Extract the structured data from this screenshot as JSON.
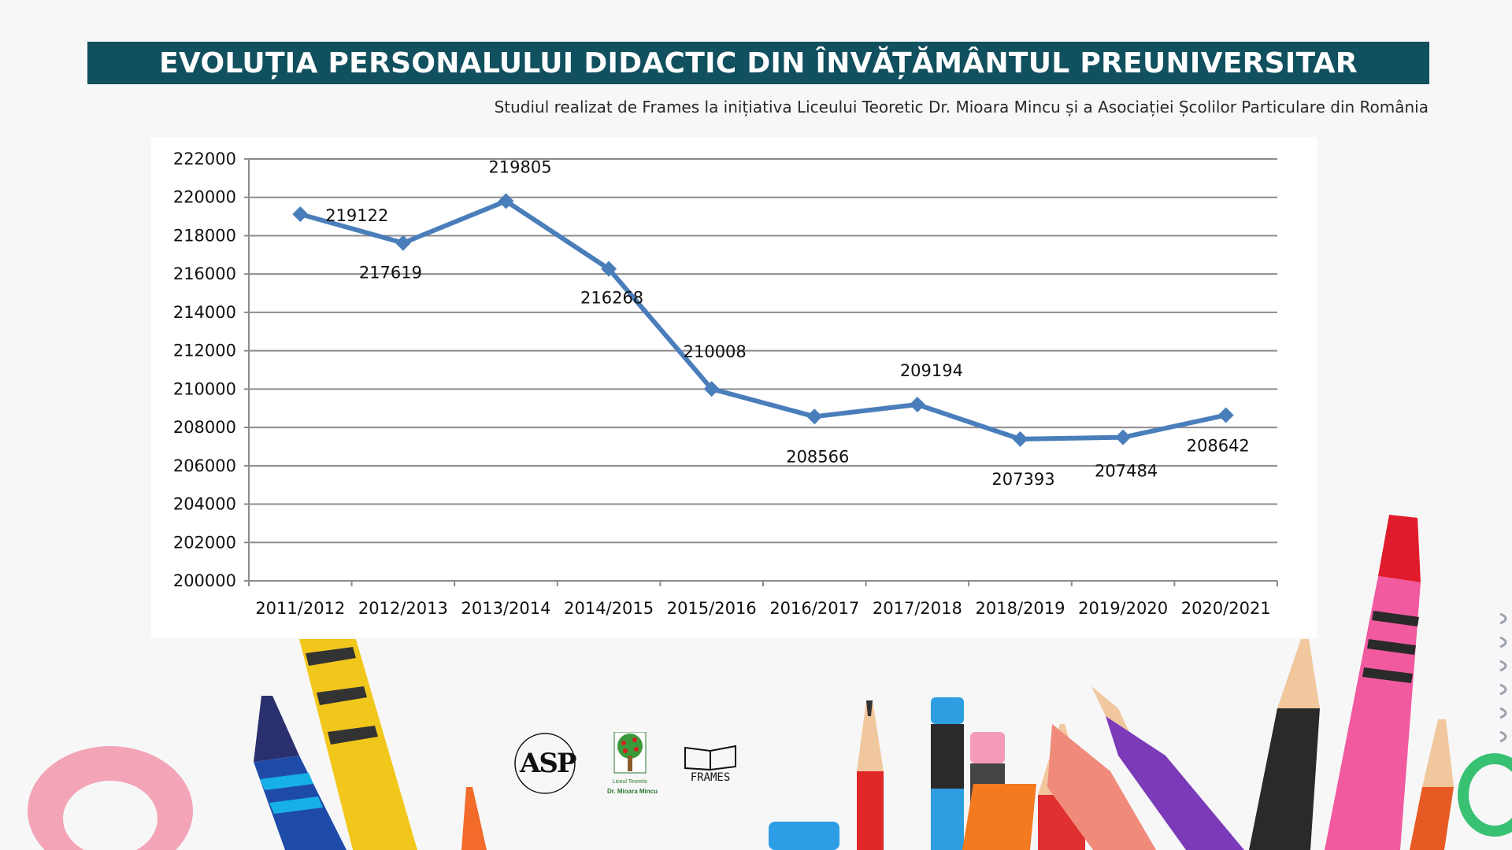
{
  "header": {
    "title": "EVOLUȚIA PERSONALULUI DIDACTIC DIN ÎNVĂȚĂMÂNTUL PREUNIVERSITAR",
    "subtitle": "Studiul realizat de  Frames la inițiativa Liceului Teoretic Dr. Mioara Mincu și a Asociației Școlilor Particulare din România"
  },
  "chart_data": {
    "type": "line",
    "categories": [
      "2011/2012",
      "2012/2013",
      "2013/2014",
      "2014/2015",
      "2015/2016",
      "2016/2017",
      "2017/2018",
      "2018/2019",
      "2019/2020",
      "2020/2021"
    ],
    "series": [
      {
        "values": [
          219122,
          217619,
          219805,
          216268,
          210008,
          208566,
          209194,
          207393,
          207484,
          208642
        ]
      }
    ],
    "ylim": [
      200000,
      222000
    ],
    "ytick_step": 2000,
    "grid": true,
    "legend": "none",
    "line_color": "#4a7ebb"
  },
  "logos": {
    "asp": "ASP",
    "school_line1": "Liceul Teoretic",
    "school_line2": "Dr. Mioara Mincu",
    "frames": "FRAMES"
  },
  "colors": {
    "title_bar": "#11505e",
    "series_line": "#4a7ebb"
  }
}
